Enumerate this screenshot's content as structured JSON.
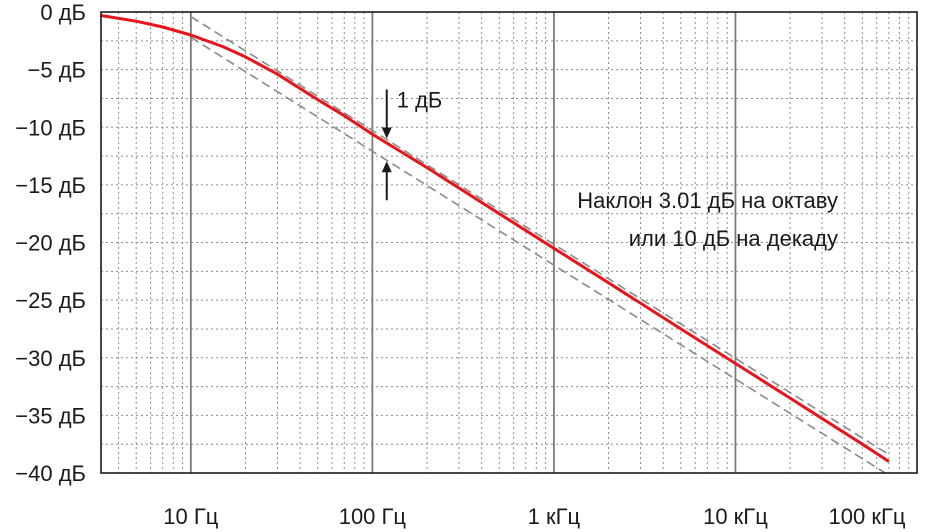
{
  "chart_data": {
    "type": "line",
    "x_scale": "log",
    "xlim_hz": [
      3.2,
      100000
    ],
    "ylim_db": [
      -40,
      0
    ],
    "grid": true,
    "y_ticks": [
      {
        "value": 0,
        "label": "0 дБ"
      },
      {
        "value": -5,
        "label": "−5 дБ"
      },
      {
        "value": -10,
        "label": "−10 дБ"
      },
      {
        "value": -15,
        "label": "−15 дБ"
      },
      {
        "value": -20,
        "label": "−20 дБ"
      },
      {
        "value": -25,
        "label": "−25 дБ"
      },
      {
        "value": -30,
        "label": "−30 дБ"
      },
      {
        "value": -35,
        "label": "−35 дБ"
      },
      {
        "value": -40,
        "label": "−40 дБ"
      }
    ],
    "x_ticks": [
      {
        "value": 10,
        "label": "10 Гц"
      },
      {
        "value": 100,
        "label": "100 Гц"
      },
      {
        "value": 1000,
        "label": "1 кГц"
      },
      {
        "value": 10000,
        "label": "10 кГц"
      },
      {
        "value": 100000,
        "label": "100 кГц"
      }
    ],
    "series": [
      {
        "color": "#e8141b",
        "x": [
          3.2,
          5,
          7,
          10,
          15,
          20,
          30,
          50,
          70,
          100,
          200,
          500,
          1000,
          2000,
          5000,
          10000,
          20000,
          50000,
          70000
        ],
        "y": [
          -0.3,
          -0.8,
          -1.3,
          -2.0,
          -3.0,
          -3.9,
          -5.4,
          -7.6,
          -9.0,
          -10.6,
          -13.5,
          -17.5,
          -20.5,
          -23.5,
          -27.5,
          -30.5,
          -33.5,
          -37.5,
          -39.0
        ]
      }
    ],
    "asymptotes": [
      {
        "color": "#8a8a8a",
        "dash": true,
        "x": [
          10,
          70000
        ],
        "y": [
          -0.4,
          -38.4
        ]
      },
      {
        "color": "#8a8a8a",
        "dash": true,
        "x": [
          10,
          70000
        ],
        "y": [
          -2.2,
          -40.2
        ]
      }
    ],
    "annotations": {
      "gap_label": "1 дБ",
      "gap_at_hz": 120,
      "slope_line1": "Наклон 3.01 дБ на октаву",
      "slope_line2": "или 10 дБ на декаду"
    }
  }
}
